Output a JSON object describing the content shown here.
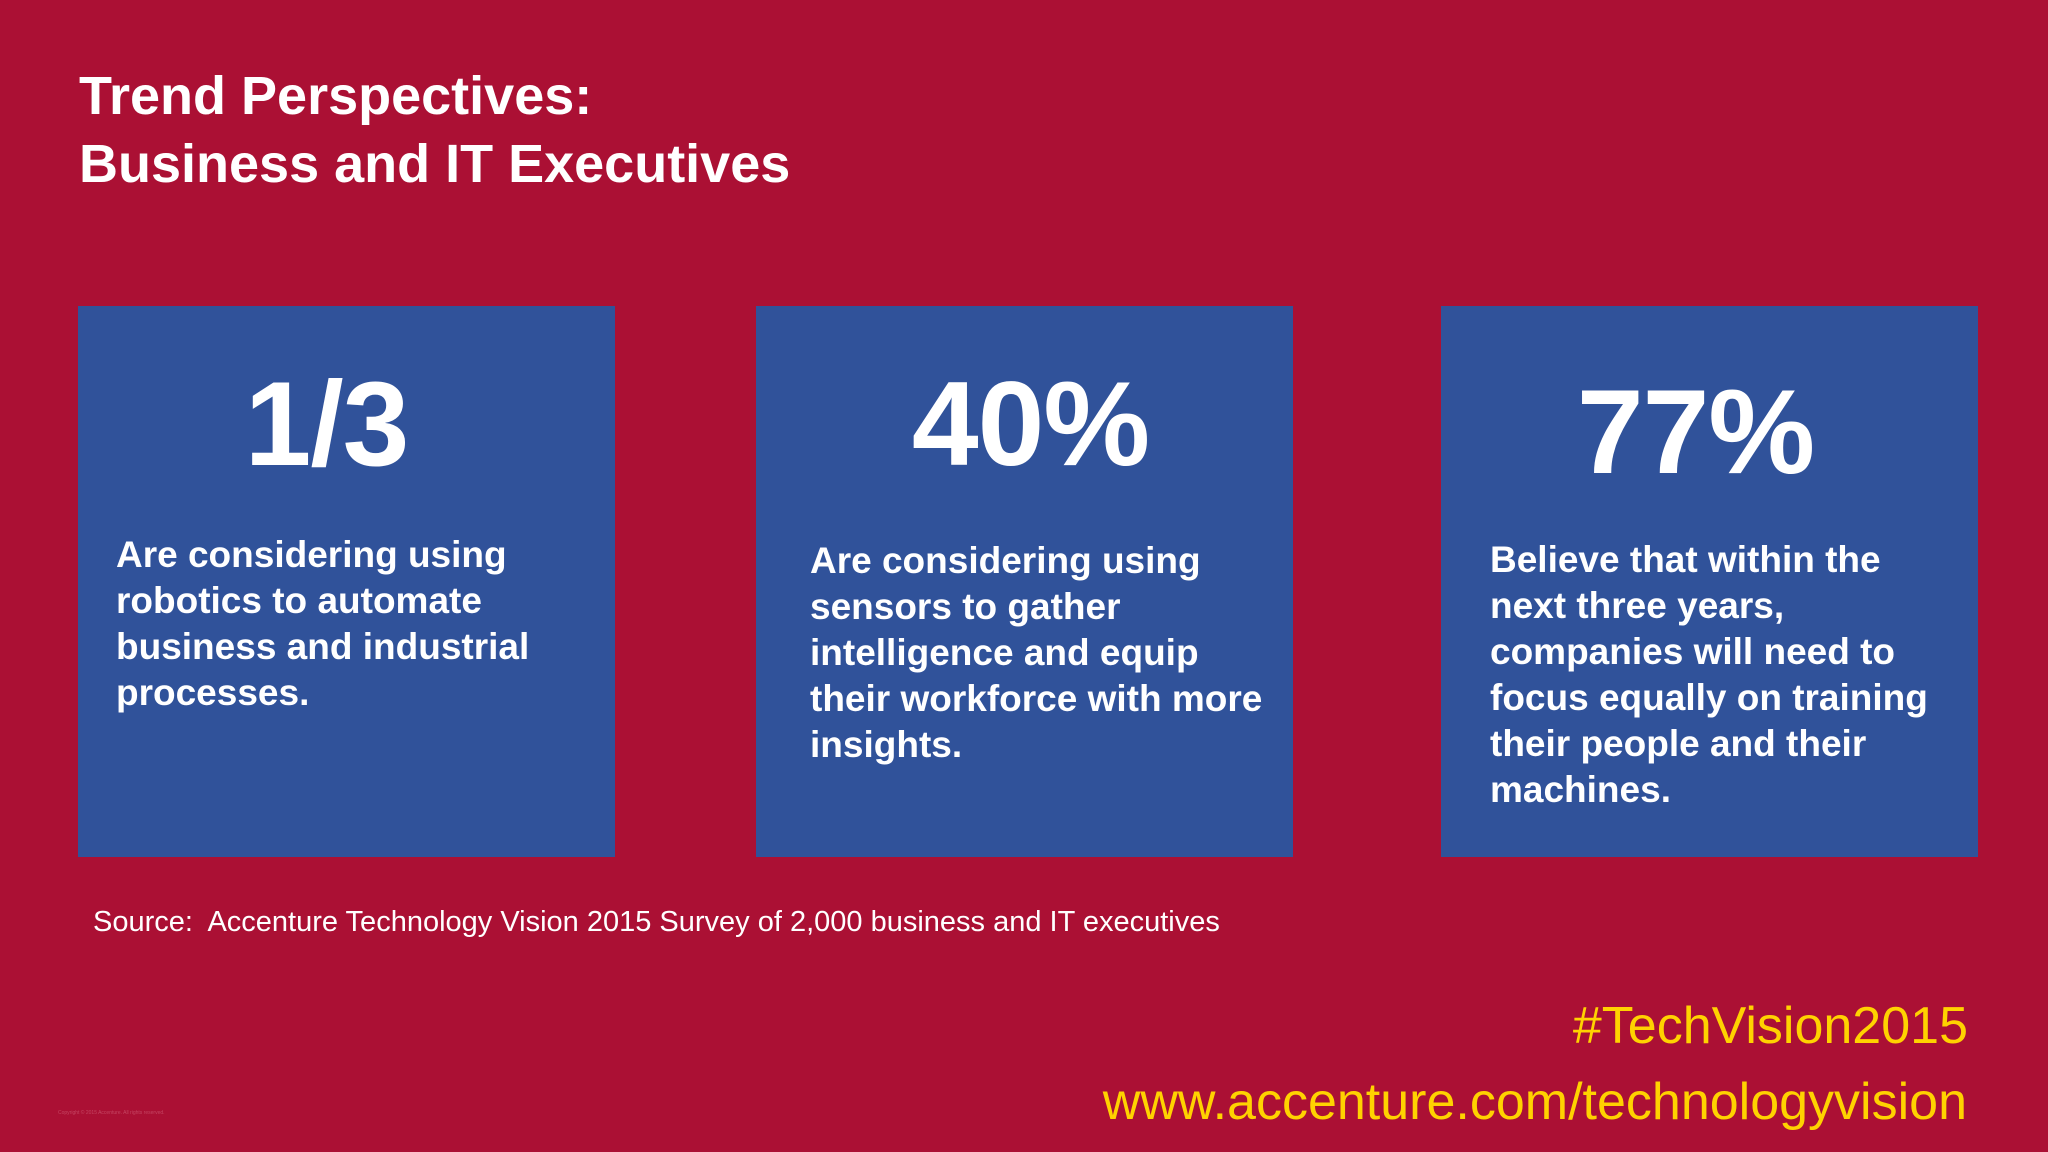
{
  "slide": {
    "title_line1": "Trend Perspectives:",
    "title_line2": "Business and IT Executives",
    "cards": [
      {
        "stat": "1/3",
        "description": "Are considering using robotics to automate business and industrial processes."
      },
      {
        "stat": "40%",
        "description": "Are considering using sensors to gather intelligence and equip their workforce with more insights."
      },
      {
        "stat": "77%",
        "description": "Believe that within the next three years, companies will need to focus equally on training their people and their machines."
      }
    ],
    "source": "Source:  Accenture Technology Vision 2015 Survey of 2,000 business and IT executives",
    "hashtag": "#TechVision2015",
    "url": "www.accenture.com/technologyvision",
    "copyright": "Copyright © 2015 Accenture. All rights reserved."
  },
  "colors": {
    "background": "#ab1034",
    "card": "#30529a",
    "accent": "#ffd200",
    "text": "#ffffff"
  }
}
